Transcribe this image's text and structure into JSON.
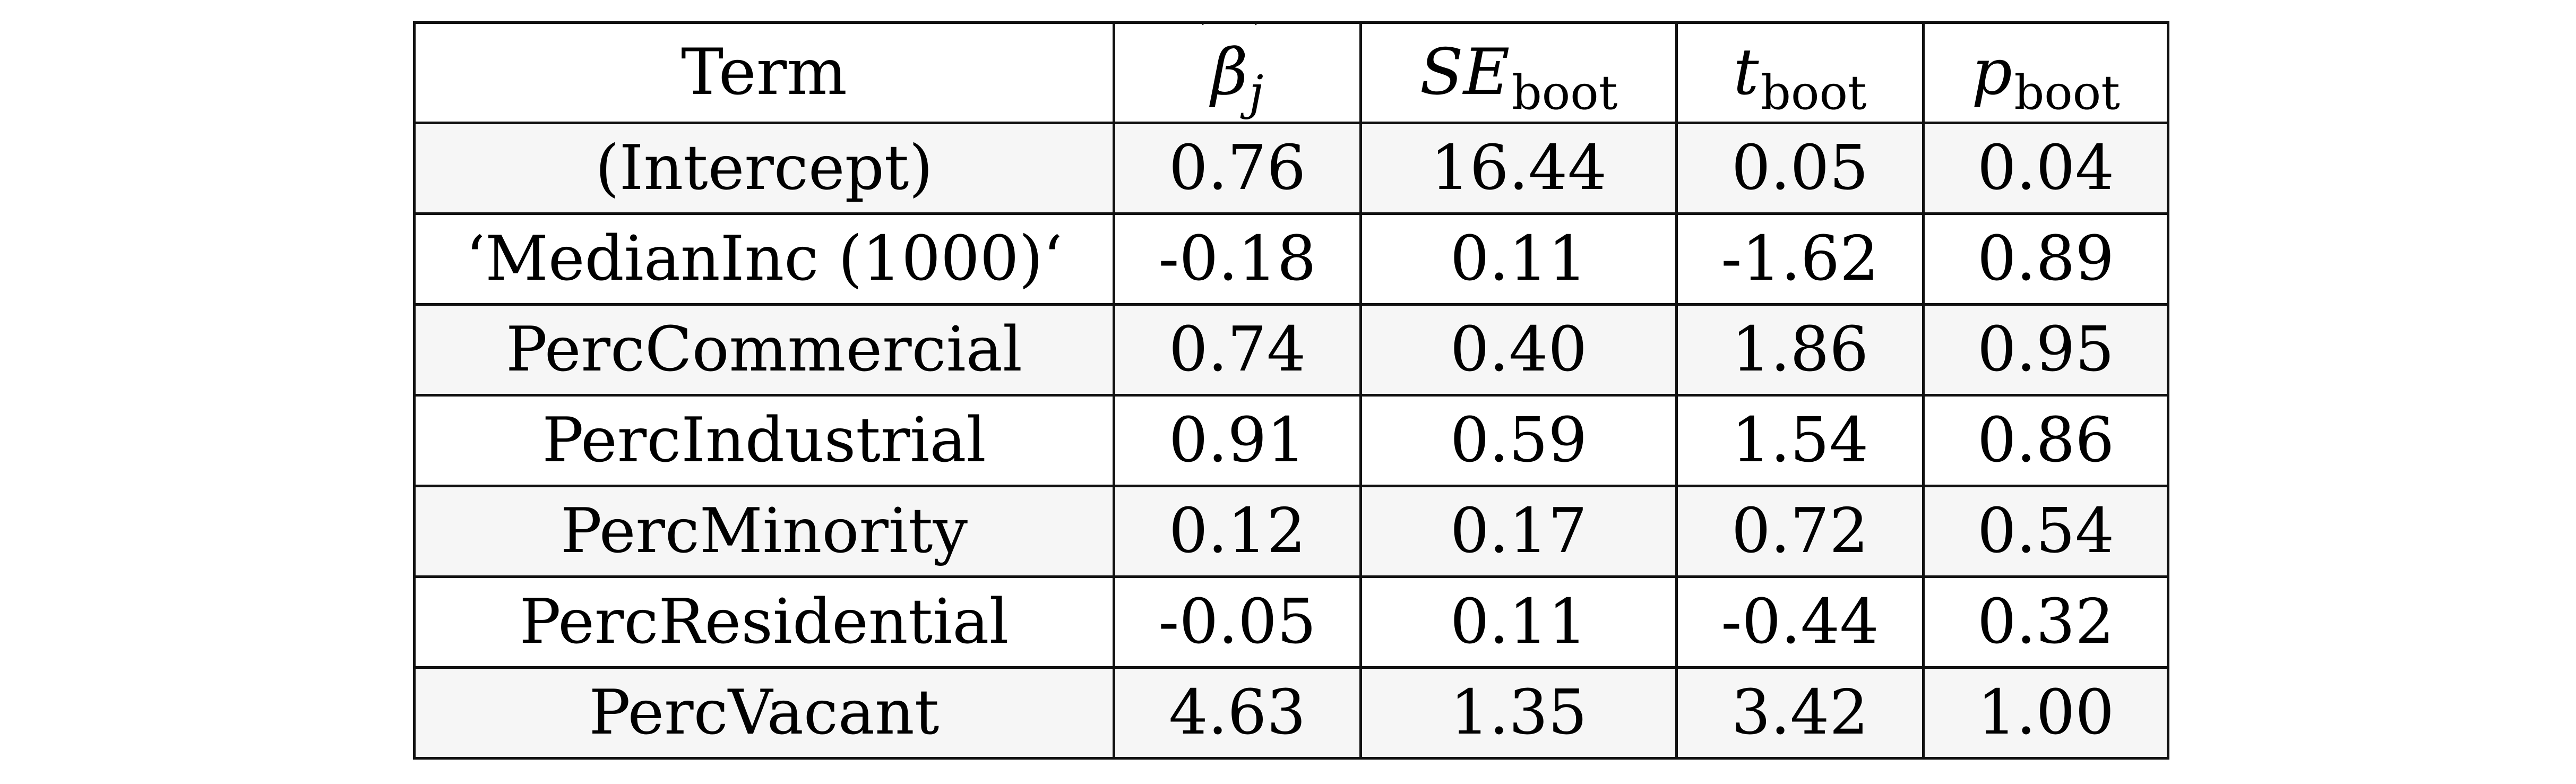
{
  "table": {
    "headers": {
      "term": "Term",
      "beta_symbol": "β",
      "beta_sub": "j",
      "se_symbol": "SE",
      "se_sub": "boot",
      "t_symbol": "t",
      "t_sub": "boot",
      "p_symbol": "p",
      "p_sub": "boot"
    },
    "rows": [
      {
        "term": "(Intercept)",
        "beta": "0.76",
        "se": "16.44",
        "t": "0.05",
        "p": "0.04"
      },
      {
        "term": "‘MedianInc (1000)‘",
        "beta": "-0.18",
        "se": "0.11",
        "t": "-1.62",
        "p": "0.89"
      },
      {
        "term": "PercCommercial",
        "beta": "0.74",
        "se": "0.40",
        "t": "1.86",
        "p": "0.95"
      },
      {
        "term": "PercIndustrial",
        "beta": "0.91",
        "se": "0.59",
        "t": "1.54",
        "p": "0.86"
      },
      {
        "term": "PercMinority",
        "beta": "0.12",
        "se": "0.17",
        "t": "0.72",
        "p": "0.54"
      },
      {
        "term": "PercResidential",
        "beta": "-0.05",
        "se": "0.11",
        "t": "-0.44",
        "p": "0.32"
      },
      {
        "term": "PercVacant",
        "beta": "4.63",
        "se": "1.35",
        "t": "3.42",
        "p": "1.00"
      }
    ]
  }
}
